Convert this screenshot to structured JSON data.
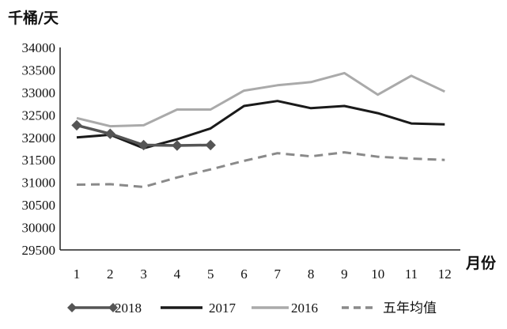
{
  "chart_data": {
    "type": "line",
    "ylabel": "千桶/天",
    "xlabel": "月份",
    "ylim": [
      29500,
      34000
    ],
    "yticks": [
      29500,
      30000,
      30500,
      31000,
      31500,
      32000,
      32500,
      33000,
      33500,
      34000
    ],
    "categories": [
      "1",
      "2",
      "3",
      "4",
      "5",
      "6",
      "7",
      "8",
      "9",
      "10",
      "11",
      "12"
    ],
    "legend_position": "bottom",
    "grid": false,
    "series": [
      {
        "name": "2018",
        "color": "#555555",
        "style": "solid-diamond",
        "values": [
          32270,
          32080,
          31830,
          31820,
          31830,
          null,
          null,
          null,
          null,
          null,
          null,
          null
        ]
      },
      {
        "name": "2017",
        "color": "#1a1a1a",
        "style": "solid",
        "values": [
          32000,
          32060,
          31760,
          31960,
          32200,
          32700,
          32810,
          32650,
          32700,
          32540,
          32310,
          32290
        ]
      },
      {
        "name": "2016",
        "color": "#aaaaaa",
        "style": "solid",
        "values": [
          32430,
          32250,
          32270,
          32620,
          32620,
          33040,
          33160,
          33230,
          33430,
          32950,
          33370,
          33020
        ]
      },
      {
        "name": "五年均值",
        "color": "#8a8a8a",
        "style": "dashed",
        "values": [
          30950,
          30960,
          30900,
          31110,
          31290,
          31480,
          31650,
          31580,
          31670,
          31570,
          31530,
          31500
        ]
      }
    ]
  }
}
